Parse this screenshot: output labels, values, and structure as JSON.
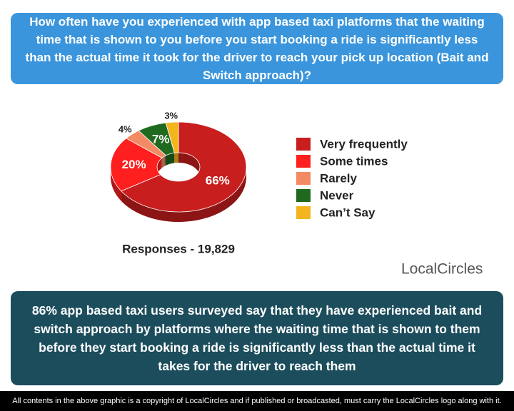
{
  "chart_data": {
    "type": "pie",
    "title": "How often have you experienced with app based taxi platforms that the waiting time that is shown to you before you start booking a ride is significantly less than the actual time it took for the driver to reach your pick up location (Bait and Switch approach)?",
    "categories": [
      "Very frequently",
      "Some times",
      "Rarely",
      "Never",
      "Can’t Say"
    ],
    "values": [
      66,
      20,
      4,
      7,
      3
    ],
    "value_labels": [
      "66%",
      "20%",
      "4%",
      "7%",
      "3%"
    ],
    "colors": [
      "#c81e1e",
      "#ff1f1f",
      "#f28a64",
      "#1f6a1f",
      "#f2b51e"
    ],
    "responses": "Responses - 19,829"
  },
  "logo": "LocalCircles",
  "summary": "86% app based taxi users surveyed say that they have experienced bait and switch approach by platforms where the waiting time that is shown to them before they start booking a ride is significantly less than the actual time it takes for the driver to reach them",
  "footer": "All contents in the above graphic is a copyright of LocalCircles and if published or broadcasted, must carry the LocalCircles logo along with it."
}
